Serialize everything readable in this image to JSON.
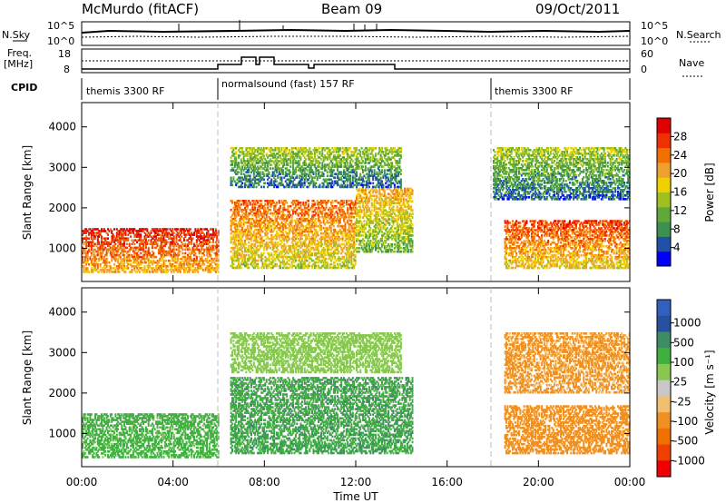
{
  "header": {
    "station": "McMurdo (fitACF)",
    "beam": "Beam 09",
    "date": "09/Oct/2011"
  },
  "summary_panel": {
    "left_label_1": "N.Sky",
    "left_ticks_1": [
      "10^5",
      "10^0"
    ],
    "right_ticks_1": [
      "10^5",
      "10^0"
    ],
    "right_label_1": "N.Search",
    "left_label_2a": "Freq.",
    "left_label_2b": "[MHz]",
    "left_ticks_2": [
      "18",
      "8"
    ],
    "right_ticks_2": [
      "60",
      "0"
    ],
    "right_label_2": "Nave",
    "cpid_label": "CPID",
    "cpid_segments": [
      "themis 3300 RF",
      "normalsound (fast) 157 RF",
      "themis 3300 RF"
    ]
  },
  "colors": {
    "power": [
      "#0000ff",
      "#2050a8",
      "#3c9050",
      "#60a838",
      "#a0c020",
      "#f0d000",
      "#f0a030",
      "#f07000",
      "#f03000",
      "#e00000"
    ],
    "velocity": [
      "#f00000",
      "#f04000",
      "#f07000",
      "#f09020",
      "#f0c070",
      "#c8c8c8",
      "#88c850",
      "#40b040",
      "#3c8c64",
      "#2850a0",
      "#3060c0"
    ]
  },
  "chart_data": [
    {
      "type": "heatmap",
      "name": "power",
      "xlabel": "",
      "ylabel": "Slant Range [km]",
      "x_ticks": [
        "00:00",
        "04:00",
        "08:00",
        "12:00",
        "16:00",
        "20:00",
        "00:00"
      ],
      "x_range_hours": [
        0,
        24
      ],
      "y_ticks": [
        1000,
        2000,
        3000,
        4000
      ],
      "ylim": [
        180,
        4600
      ],
      "colorbar_label": "Power [dB]",
      "colorbar_ticks": [
        4,
        8,
        12,
        16,
        20,
        24,
        28
      ],
      "colorbar_range": [
        0,
        32
      ],
      "bands": [
        {
          "t_start": 0.0,
          "t_end": 6.0,
          "range_low": 400,
          "range_high": 1500,
          "value": 24
        },
        {
          "t_start": 6.5,
          "t_end": 12.0,
          "range_low": 500,
          "range_high": 2200,
          "value": 20
        },
        {
          "t_start": 12.0,
          "t_end": 14.5,
          "range_low": 900,
          "range_high": 2500,
          "value": 16
        },
        {
          "t_start": 18.5,
          "t_end": 24.0,
          "range_low": 500,
          "range_high": 1700,
          "value": 22
        },
        {
          "t_start": 6.5,
          "t_end": 14.0,
          "range_low": 2500,
          "range_high": 3500,
          "value": 10
        },
        {
          "t_start": 18.0,
          "t_end": 24.0,
          "range_low": 2200,
          "range_high": 3500,
          "value": 10
        }
      ]
    },
    {
      "type": "heatmap",
      "name": "velocity",
      "xlabel": "Time UT",
      "ylabel": "Slant Range [km]",
      "x_ticks": [
        "00:00",
        "04:00",
        "08:00",
        "12:00",
        "16:00",
        "20:00",
        "00:00"
      ],
      "x_range_hours": [
        0,
        24
      ],
      "y_ticks": [
        1000,
        2000,
        3000,
        4000
      ],
      "ylim": [
        180,
        4600
      ],
      "colorbar_label": "Velocity [m s⁻¹]",
      "colorbar_ticks": [
        "1000",
        "500",
        "100",
        "25",
        "-25",
        "-100",
        "-500",
        "-1000"
      ],
      "bands": [
        {
          "t_start": 0.0,
          "t_end": 6.0,
          "range_low": 400,
          "range_high": 1500,
          "value": 50
        },
        {
          "t_start": 6.5,
          "t_end": 14.5,
          "range_low": 500,
          "range_high": 2400,
          "value": 80
        },
        {
          "t_start": 18.5,
          "t_end": 24.0,
          "range_low": 500,
          "range_high": 1700,
          "value": -300
        },
        {
          "t_start": 6.5,
          "t_end": 14.0,
          "range_low": 2500,
          "range_high": 3500,
          "value": 10
        },
        {
          "t_start": 18.5,
          "t_end": 24.0,
          "range_low": 2000,
          "range_high": 3500,
          "value": -150
        }
      ]
    }
  ]
}
